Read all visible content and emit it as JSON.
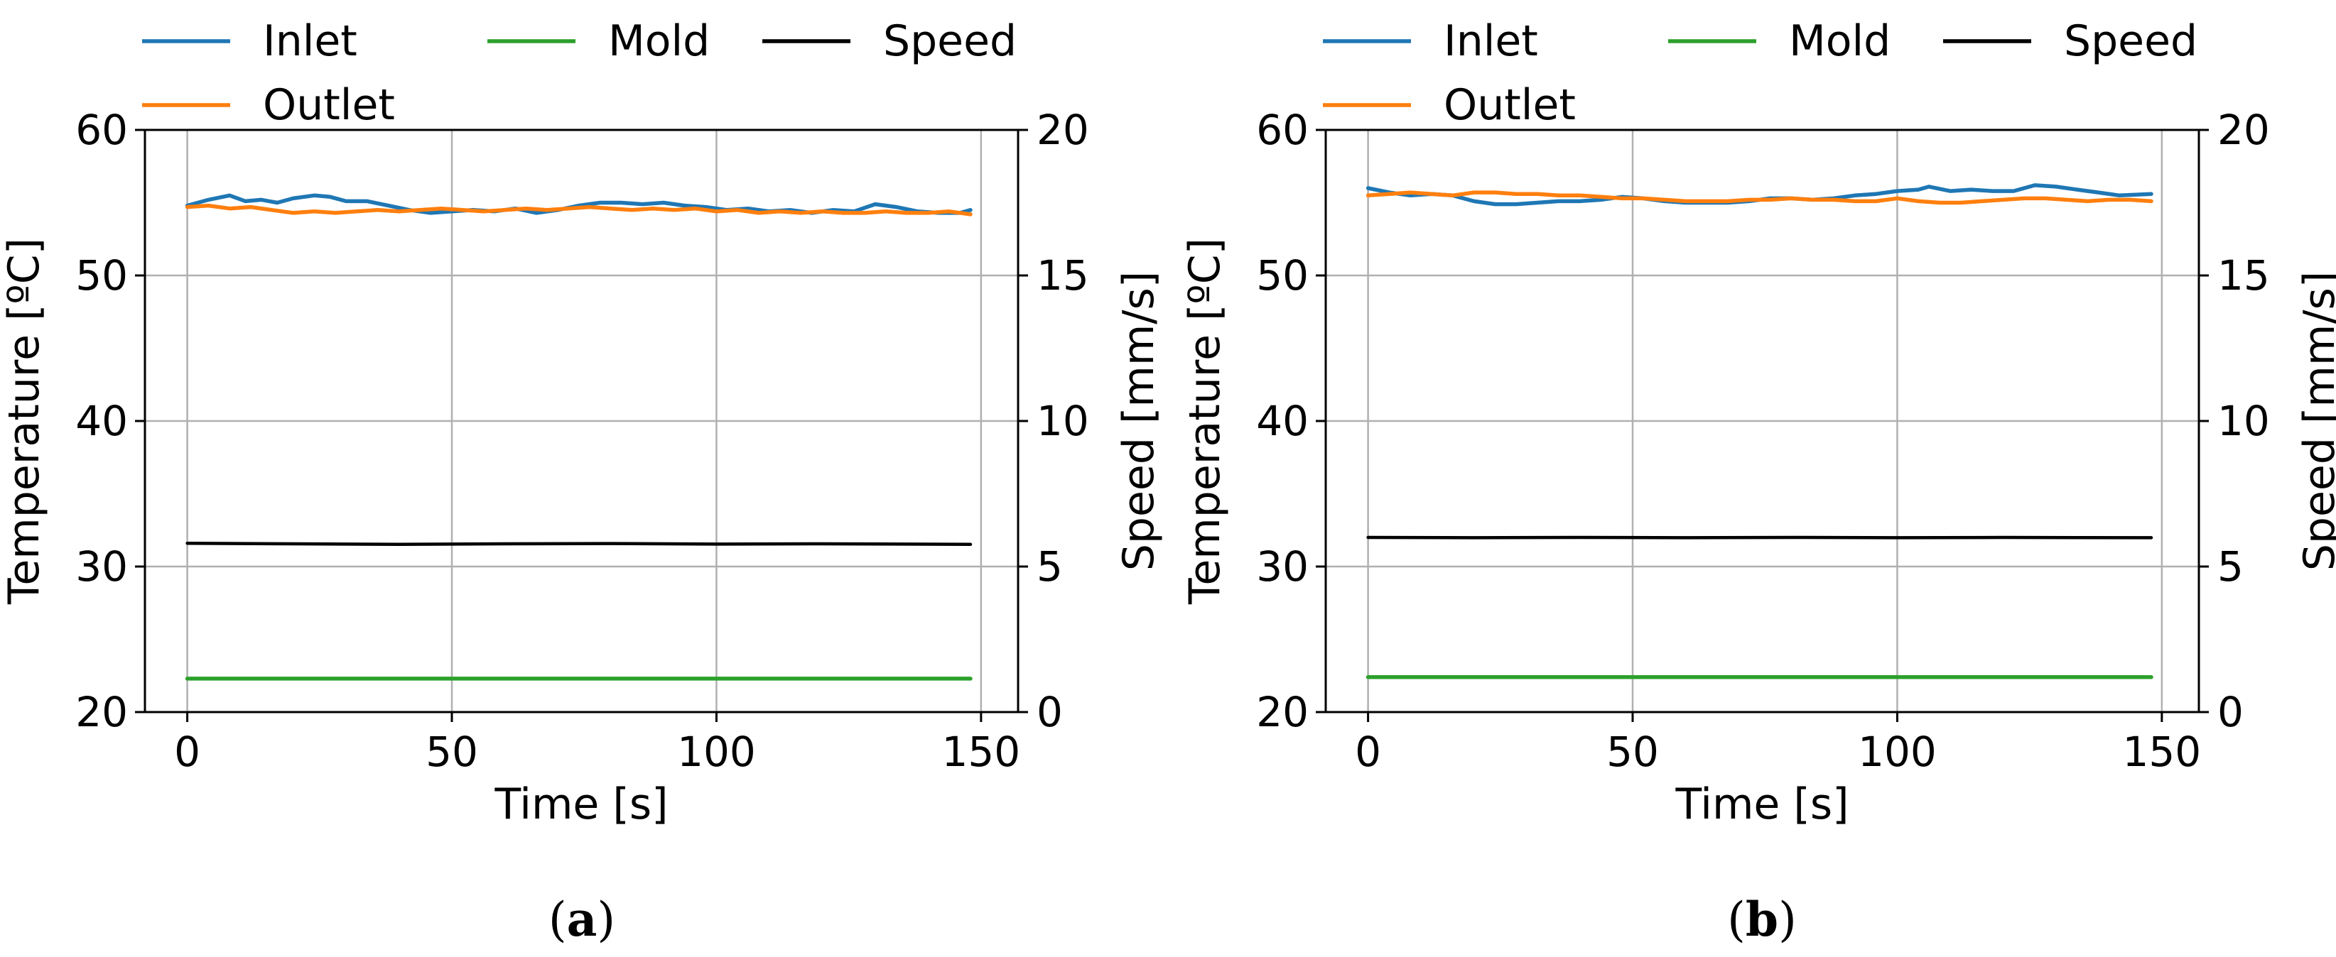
{
  "chart_data": [
    {
      "panel_id": "a",
      "caption_letter": "a",
      "type": "line",
      "xlabel": "Time [s]",
      "ylabel": "Temperature [ºC]",
      "y2label": "Speed [mm/s]",
      "xlim": [
        -8,
        157
      ],
      "ylim": [
        20,
        60
      ],
      "y2lim": [
        0,
        20
      ],
      "xticks": [
        0,
        50,
        100,
        150
      ],
      "yticks": [
        20,
        30,
        40,
        50,
        60
      ],
      "y2ticks": [
        0,
        5,
        10,
        15,
        20
      ],
      "grid": true,
      "legend_position": "top",
      "series": [
        {
          "name": "Inlet",
          "color": "#1f77b4",
          "axis": "left",
          "x": [
            0,
            4,
            8,
            11,
            14,
            17,
            20,
            24,
            27,
            30,
            34,
            38,
            42,
            46,
            50,
            54,
            58,
            62,
            66,
            70,
            74,
            78,
            82,
            86,
            90,
            94,
            98,
            102,
            106,
            110,
            114,
            118,
            122,
            126,
            130,
            134,
            138,
            142,
            146,
            148
          ],
          "y": [
            54.8,
            55.2,
            55.5,
            55.1,
            55.2,
            55.0,
            55.3,
            55.5,
            55.4,
            55.1,
            55.1,
            54.8,
            54.5,
            54.3,
            54.4,
            54.5,
            54.4,
            54.6,
            54.3,
            54.5,
            54.8,
            55.0,
            55.0,
            54.9,
            55.0,
            54.8,
            54.7,
            54.5,
            54.6,
            54.4,
            54.5,
            54.3,
            54.5,
            54.4,
            54.9,
            54.7,
            54.4,
            54.3,
            54.3,
            54.5
          ]
        },
        {
          "name": "Outlet",
          "color": "#ff7f0e",
          "axis": "left",
          "x": [
            0,
            4,
            8,
            12,
            16,
            20,
            24,
            28,
            32,
            36,
            40,
            44,
            48,
            52,
            56,
            60,
            64,
            68,
            72,
            76,
            80,
            84,
            88,
            92,
            96,
            100,
            104,
            108,
            112,
            116,
            120,
            124,
            128,
            132,
            136,
            140,
            144,
            148
          ],
          "y": [
            54.7,
            54.8,
            54.6,
            54.7,
            54.5,
            54.3,
            54.4,
            54.3,
            54.4,
            54.5,
            54.4,
            54.5,
            54.6,
            54.5,
            54.4,
            54.5,
            54.6,
            54.5,
            54.6,
            54.7,
            54.6,
            54.5,
            54.6,
            54.5,
            54.6,
            54.4,
            54.5,
            54.3,
            54.4,
            54.3,
            54.4,
            54.3,
            54.3,
            54.4,
            54.3,
            54.3,
            54.4,
            54.2
          ]
        },
        {
          "name": "Mold",
          "color": "#2ca02c",
          "axis": "left",
          "x": [
            0,
            148
          ],
          "y": [
            22.3,
            22.3
          ]
        },
        {
          "name": "Speed",
          "color": "#000000",
          "axis": "right",
          "x": [
            0,
            20,
            40,
            60,
            80,
            100,
            120,
            148
          ],
          "y": [
            5.8,
            5.78,
            5.76,
            5.78,
            5.79,
            5.77,
            5.78,
            5.76
          ]
        }
      ]
    },
    {
      "panel_id": "b",
      "caption_letter": "b",
      "type": "line",
      "xlabel": "Time [s]",
      "ylabel": "Temperature [ºC]",
      "y2label": "Speed [mm/s]",
      "xlim": [
        -8,
        157
      ],
      "ylim": [
        20,
        60
      ],
      "y2lim": [
        0,
        20
      ],
      "xticks": [
        0,
        50,
        100,
        150
      ],
      "yticks": [
        20,
        30,
        40,
        50,
        60
      ],
      "y2ticks": [
        0,
        5,
        10,
        15,
        20
      ],
      "grid": true,
      "legend_position": "top",
      "series": [
        {
          "name": "Inlet",
          "color": "#1f77b4",
          "axis": "left",
          "x": [
            0,
            4,
            8,
            12,
            16,
            20,
            24,
            28,
            32,
            36,
            40,
            44,
            48,
            52,
            56,
            60,
            64,
            68,
            72,
            76,
            80,
            84,
            88,
            92,
            96,
            100,
            104,
            106,
            110,
            114,
            118,
            122,
            126,
            130,
            134,
            138,
            142,
            148
          ],
          "y": [
            56.0,
            55.7,
            55.5,
            55.6,
            55.5,
            55.1,
            54.9,
            54.9,
            55.0,
            55.1,
            55.1,
            55.2,
            55.4,
            55.3,
            55.1,
            55.0,
            55.0,
            55.0,
            55.1,
            55.3,
            55.3,
            55.2,
            55.3,
            55.5,
            55.6,
            55.8,
            55.9,
            56.1,
            55.8,
            55.9,
            55.8,
            55.8,
            56.2,
            56.1,
            55.9,
            55.7,
            55.5,
            55.6
          ]
        },
        {
          "name": "Outlet",
          "color": "#ff7f0e",
          "axis": "left",
          "x": [
            0,
            4,
            8,
            12,
            16,
            20,
            24,
            28,
            32,
            36,
            40,
            44,
            48,
            52,
            56,
            60,
            64,
            68,
            72,
            76,
            80,
            84,
            88,
            92,
            96,
            100,
            104,
            108,
            112,
            116,
            120,
            124,
            128,
            132,
            136,
            140,
            144,
            148
          ],
          "y": [
            55.5,
            55.6,
            55.7,
            55.6,
            55.5,
            55.7,
            55.7,
            55.6,
            55.6,
            55.5,
            55.5,
            55.4,
            55.3,
            55.3,
            55.2,
            55.1,
            55.1,
            55.1,
            55.2,
            55.2,
            55.3,
            55.2,
            55.2,
            55.1,
            55.1,
            55.3,
            55.1,
            55.0,
            55.0,
            55.1,
            55.2,
            55.3,
            55.3,
            55.2,
            55.1,
            55.2,
            55.2,
            55.1
          ]
        },
        {
          "name": "Mold",
          "color": "#2ca02c",
          "axis": "left",
          "x": [
            0,
            148
          ],
          "y": [
            22.4,
            22.4
          ]
        },
        {
          "name": "Speed",
          "color": "#000000",
          "axis": "right",
          "x": [
            0,
            20,
            40,
            60,
            80,
            100,
            120,
            148
          ],
          "y": [
            6.0,
            5.99,
            6.0,
            5.99,
            6.0,
            5.99,
            6.0,
            5.99
          ]
        }
      ]
    }
  ]
}
